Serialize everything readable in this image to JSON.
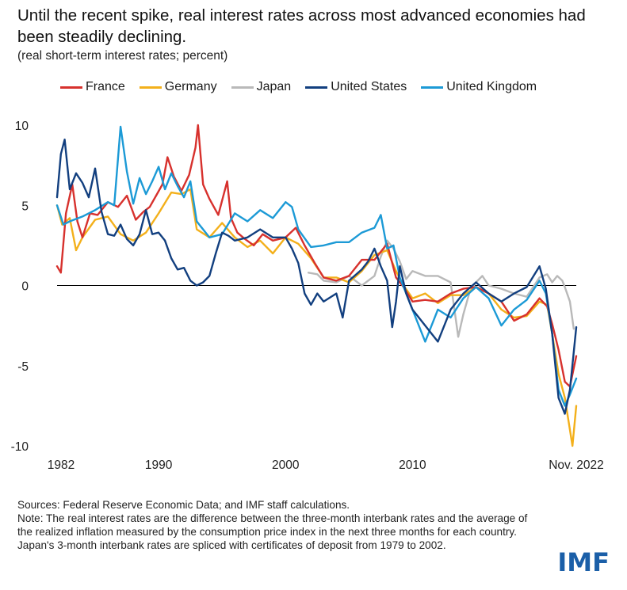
{
  "colors": {
    "france": "#d7312d",
    "germany": "#f3b01b",
    "japan": "#b9b9b9",
    "united_states": "#123f7f",
    "united_kingdom": "#1c9ad6",
    "logo": "#1b5fa8"
  },
  "logo_text": "IMF",
  "chart_data": {
    "type": "line",
    "title": "Until the recent spike, real interest rates across most advanced economies had been steadily declining.",
    "subtitle": "(real short-term interest rates; percent)",
    "xlabel": "",
    "ylabel": "",
    "xlim": [
      1982,
      2022.9
    ],
    "ylim": [
      -10,
      10
    ],
    "yticks": [
      10,
      5,
      0,
      -5,
      -10
    ],
    "ytick_labels": [
      "10",
      "5",
      "0",
      "-5",
      "-10"
    ],
    "xticks": [
      1982,
      1990,
      2000,
      2010,
      2022.9
    ],
    "xtick_labels": [
      "1982",
      "1990",
      "2000",
      "2010",
      "Nov. 2022"
    ],
    "legend": "top",
    "grid": false,
    "series": [
      {
        "name": "France",
        "color_key": "france",
        "x": [
          1982,
          1982.3,
          1982.7,
          1983.2,
          1983.6,
          1984,
          1984.6,
          1985.2,
          1986,
          1986.8,
          1987.5,
          1988.2,
          1988.8,
          1989.3,
          1989.8,
          1990.3,
          1990.7,
          1991.2,
          1991.8,
          1992.4,
          1992.9,
          1993.1,
          1993.5,
          1994,
          1994.7,
          1995.4,
          1995.7,
          1996.2,
          1996.8,
          1997.5,
          1998.2,
          1999,
          2000,
          2000.8,
          2001.5,
          2002.3,
          2003,
          2004,
          2005,
          2006,
          2007,
          2008,
          2008.7,
          2009.3,
          2010,
          2011,
          2012,
          2013,
          2014,
          2015,
          2016,
          2017,
          2018,
          2019,
          2020,
          2020.6,
          2021,
          2021.5,
          2022,
          2022.4,
          2022.9
        ],
        "y": [
          1.2,
          0.8,
          4.5,
          6.3,
          4.0,
          3.0,
          4.5,
          4.4,
          5.2,
          4.9,
          5.6,
          4.1,
          4.6,
          4.9,
          5.6,
          6.3,
          8.0,
          6.8,
          5.9,
          6.9,
          8.6,
          10.0,
          6.3,
          5.4,
          4.4,
          6.5,
          4.2,
          3.3,
          2.9,
          2.5,
          3.2,
          2.8,
          3.0,
          3.6,
          2.5,
          1.4,
          0.5,
          0.3,
          0.6,
          1.6,
          1.6,
          2.6,
          0.5,
          -0.1,
          -1.0,
          -0.9,
          -1.0,
          -0.5,
          -0.2,
          -0.1,
          -0.5,
          -1.0,
          -2.2,
          -1.8,
          -0.8,
          -1.3,
          -2.4,
          -4.0,
          -6.0,
          -6.3,
          -4.4
        ]
      },
      {
        "name": "Germany",
        "color_key": "germany",
        "x": [
          1982,
          1982.4,
          1983,
          1983.5,
          1984,
          1985,
          1986,
          1987,
          1988,
          1989,
          1990,
          1991,
          1991.8,
          1992.5,
          1993,
          1994,
          1995,
          1996,
          1997,
          1998,
          1999,
          2000,
          2001,
          2002,
          2003,
          2004,
          2005,
          2006,
          2007,
          2008,
          2008.7,
          2009.3,
          2010,
          2011,
          2012,
          2013,
          2014,
          2015,
          2016,
          2017,
          2018,
          2019,
          2020,
          2020.6,
          2021,
          2021.5,
          2022,
          2022.4,
          2022.6,
          2022.9
        ],
        "y": [
          5.0,
          3.8,
          4.2,
          2.2,
          3.0,
          4.1,
          4.3,
          3.2,
          2.8,
          3.3,
          4.5,
          5.8,
          5.7,
          6.0,
          3.5,
          3.0,
          3.9,
          3.0,
          2.4,
          2.8,
          2.0,
          3.0,
          2.6,
          1.7,
          0.5,
          0.5,
          0.2,
          0.9,
          1.9,
          2.2,
          0.9,
          0.0,
          -0.8,
          -0.5,
          -1.1,
          -0.6,
          -0.6,
          -0.1,
          -0.5,
          -1.5,
          -2.0,
          -1.9,
          -1.0,
          -1.2,
          -3.0,
          -5.5,
          -7.0,
          -9.0,
          -10.0,
          -7.5
        ]
      },
      {
        "name": "Japan",
        "color_key": "japan",
        "x": [
          2001.8,
          2002.5,
          2003,
          2004,
          2005,
          2006,
          2007,
          2007.5,
          2008,
          2008.5,
          2009,
          2009.5,
          2010,
          2011,
          2012,
          2013,
          2013.6,
          2014,
          2014.5,
          2015,
          2015.5,
          2016,
          2017,
          2018,
          2019,
          2020,
          2020.6,
          2021,
          2021.4,
          2021.8,
          2022,
          2022.4,
          2022.7
        ],
        "y": [
          0.8,
          0.7,
          0.3,
          0.2,
          0.6,
          0.0,
          0.6,
          1.8,
          2.8,
          2.3,
          1.5,
          0.4,
          0.9,
          0.6,
          0.6,
          0.2,
          -3.2,
          -1.8,
          -0.4,
          0.2,
          0.6,
          0.0,
          -0.2,
          -0.5,
          -0.7,
          0.5,
          0.7,
          0.2,
          0.6,
          0.3,
          -0.1,
          -1.0,
          -2.7
        ]
      },
      {
        "name": "United States",
        "color_key": "united_states",
        "x": [
          1982,
          1982.3,
          1982.6,
          1983,
          1983.5,
          1984,
          1984.5,
          1985,
          1985.5,
          1986,
          1986.5,
          1987,
          1987.5,
          1988,
          1988.5,
          1989,
          1989.5,
          1990,
          1990.5,
          1991,
          1991.5,
          1992,
          1992.5,
          1993,
          1993.5,
          1994,
          1994.5,
          1995,
          1995.5,
          1996,
          1997,
          1998,
          1999,
          2000,
          2000.5,
          2001,
          2001.5,
          2002,
          2002.5,
          2003,
          2004,
          2004.5,
          2005,
          2006,
          2006.5,
          2007,
          2007.5,
          2008,
          2008.4,
          2008.7,
          2009,
          2009.5,
          2010,
          2011,
          2012,
          2013,
          2014,
          2015,
          2016,
          2017,
          2018,
          2019,
          2020,
          2020.5,
          2021,
          2021.5,
          2022,
          2022.4,
          2022.9
        ],
        "y": [
          5.5,
          8.2,
          9.1,
          6.0,
          7.0,
          6.4,
          5.5,
          7.3,
          4.6,
          3.2,
          3.1,
          3.8,
          2.9,
          2.5,
          3.2,
          4.7,
          3.2,
          3.3,
          2.8,
          1.7,
          1.0,
          1.1,
          0.3,
          0.0,
          0.2,
          0.6,
          2.0,
          3.3,
          3.1,
          2.8,
          3.0,
          3.5,
          3.0,
          3.0,
          2.3,
          1.4,
          -0.5,
          -1.2,
          -0.5,
          -1.0,
          -0.5,
          -2.0,
          0.3,
          1.0,
          1.5,
          2.3,
          1.2,
          0.3,
          -2.6,
          -1.0,
          1.2,
          -0.5,
          -1.5,
          -2.5,
          -3.5,
          -1.5,
          -0.5,
          0.2,
          -0.5,
          -1.0,
          -0.5,
          -0.1,
          1.2,
          -0.2,
          -3.0,
          -7.0,
          -8.0,
          -6.5,
          -2.6
        ]
      },
      {
        "name": "United Kingdom",
        "color_key": "united_kingdom",
        "x": [
          1982,
          1982.5,
          1983,
          1984,
          1985,
          1986,
          1986.5,
          1987,
          1987.5,
          1988,
          1988.5,
          1989,
          1989.5,
          1990,
          1990.5,
          1991,
          1991.5,
          1992,
          1992.5,
          1993,
          1994,
          1995,
          1996,
          1997,
          1998,
          1999,
          2000,
          2000.5,
          2001,
          2002,
          2003,
          2004,
          2005,
          2006,
          2007,
          2007.5,
          2008,
          2008.5,
          2009,
          2009.5,
          2010,
          2011,
          2012,
          2013,
          2014,
          2015,
          2016,
          2017,
          2018,
          2019,
          2020,
          2020.5,
          2021,
          2021.5,
          2022,
          2022.4,
          2022.9
        ],
        "y": [
          5.0,
          3.8,
          4.0,
          4.3,
          4.7,
          5.2,
          5.0,
          9.9,
          7.1,
          5.1,
          6.7,
          5.7,
          6.5,
          7.4,
          6.0,
          7.0,
          6.2,
          5.5,
          6.5,
          4.0,
          3.0,
          3.2,
          4.5,
          4.0,
          4.7,
          4.2,
          5.2,
          4.9,
          3.5,
          2.4,
          2.5,
          2.7,
          2.7,
          3.3,
          3.6,
          4.4,
          2.3,
          2.5,
          0.5,
          -0.5,
          -1.5,
          -3.5,
          -1.5,
          -2.0,
          -0.8,
          -0.1,
          -0.8,
          -2.5,
          -1.5,
          -0.9,
          0.3,
          -0.5,
          -3.0,
          -6.5,
          -7.5,
          -6.8,
          -5.8
        ]
      }
    ]
  },
  "footer": {
    "sources": "Sources: Federal Reserve Economic Data; and IMF staff calculations.",
    "note": "Note: The real interest rates are the difference between the three-month interbank rates and the average of the realized inflation measured by the consumption price index in the next three months for each country. Japan's 3-month interbank rates are spliced with certificates of deposit from 1979 to 2002."
  }
}
